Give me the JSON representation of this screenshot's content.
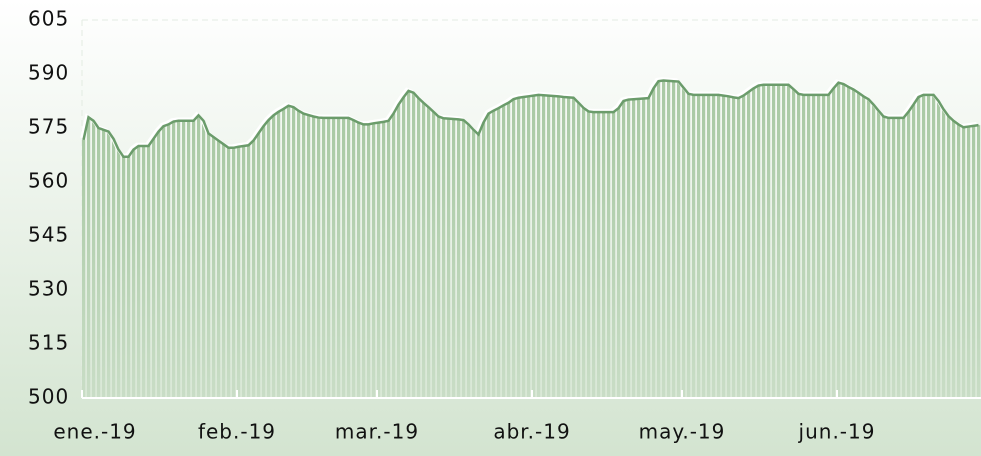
{
  "chart_data": {
    "type": "area",
    "categories": [
      "ene.-19",
      null,
      null,
      null,
      null,
      null,
      null,
      null,
      null,
      null,
      null,
      null,
      null,
      null,
      null,
      null,
      null,
      null,
      null,
      null,
      null,
      null,
      null,
      null,
      null,
      null,
      null,
      null,
      null,
      null,
      null,
      "feb.-19",
      null,
      null,
      null,
      null,
      null,
      null,
      null,
      null,
      null,
      null,
      null,
      null,
      null,
      null,
      null,
      null,
      null,
      null,
      null,
      null,
      null,
      null,
      null,
      null,
      null,
      null,
      null,
      "mar.-19",
      null,
      null,
      null,
      null,
      null,
      null,
      null,
      null,
      null,
      null,
      null,
      null,
      null,
      null,
      null,
      null,
      null,
      null,
      null,
      null,
      null,
      null,
      null,
      null,
      null,
      null,
      null,
      null,
      null,
      null,
      "abr.-19",
      null,
      null,
      null,
      null,
      null,
      null,
      null,
      null,
      null,
      null,
      null,
      null,
      null,
      null,
      null,
      null,
      null,
      null,
      null,
      null,
      null,
      null,
      null,
      null,
      null,
      null,
      null,
      null,
      null,
      "may.-19",
      null,
      null,
      null,
      null,
      null,
      null,
      null,
      null,
      null,
      null,
      null,
      null,
      null,
      null,
      null,
      null,
      null,
      null,
      null,
      null,
      null,
      null,
      null,
      null,
      null,
      null,
      null,
      null,
      null,
      null,
      "jun.-19",
      null,
      null,
      null,
      null,
      null,
      null,
      null,
      null,
      null,
      null,
      null,
      null,
      null,
      null,
      null,
      null,
      null,
      null,
      null,
      null,
      null,
      null,
      null,
      null,
      null,
      null,
      null,
      null
    ],
    "values": [
      571.7,
      578,
      577,
      575,
      574.5,
      574,
      572,
      569,
      567,
      567,
      569,
      570,
      570,
      570,
      572,
      574,
      575.5,
      576,
      576.8,
      577,
      577,
      577,
      577,
      578.5,
      577,
      573.5,
      572.5,
      571.5,
      570.5,
      569.5,
      569.5,
      569.8,
      570,
      570.2,
      571.5,
      573.5,
      575.5,
      577.2,
      578.5,
      579.5,
      580.3,
      581.2,
      580.8,
      579.8,
      579,
      578.6,
      578.2,
      577.9,
      577.8,
      577.8,
      577.8,
      577.8,
      577.8,
      577.8,
      577.2,
      576.5,
      576,
      576,
      576.3,
      576.5,
      576.7,
      577,
      579,
      581.5,
      583.5,
      585.3,
      584.8,
      583.3,
      582,
      580.8,
      579.5,
      578.2,
      577.7,
      577.6,
      577.5,
      577.4,
      577.2,
      576,
      574.5,
      573.2,
      576.5,
      579,
      579.8,
      580.5,
      581.3,
      582,
      583,
      583.4,
      583.6,
      583.8,
      584,
      584.2,
      584.1,
      584,
      583.9,
      583.8,
      583.6,
      583.5,
      583.4,
      582,
      580.6,
      579.6,
      579.4,
      579.4,
      579.4,
      579.4,
      579.4,
      580.5,
      582.5,
      582.9,
      583,
      583.1,
      583.2,
      583.3,
      586,
      588,
      588.2,
      588.1,
      588,
      587.9,
      586.2,
      584.5,
      584.2,
      584.2,
      584.2,
      584.2,
      584.2,
      584.2,
      584,
      583.8,
      583.5,
      583.3,
      584,
      585,
      586,
      586.8,
      587,
      587,
      587,
      587,
      587,
      587,
      585.8,
      584.5,
      584.2,
      584.2,
      584.2,
      584.2,
      584.2,
      584.2,
      586,
      587.6,
      587.2,
      586.4,
      585.7,
      584.8,
      583.8,
      583,
      581.5,
      579.8,
      578.2,
      577.8,
      577.8,
      577.8,
      577.8,
      579.5,
      581.5,
      583.6,
      584.2,
      584.2,
      584.2,
      582.5,
      580.2,
      578.3,
      577,
      576,
      575.2,
      575.4,
      575.6,
      575.8
    ],
    "color": "#6b9c6b",
    "ylim": [
      500,
      605
    ],
    "yticks": [
      500,
      515,
      530,
      545,
      560,
      575,
      590,
      605
    ],
    "grid": false
  }
}
